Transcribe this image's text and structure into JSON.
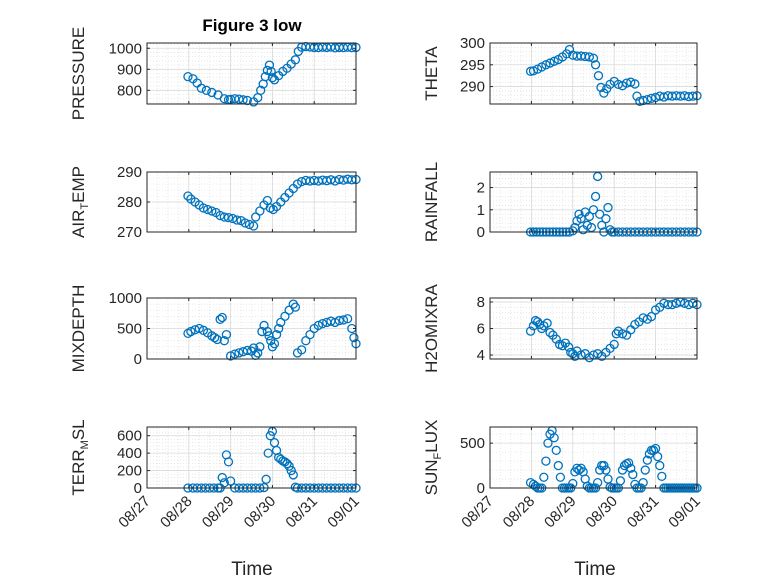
{
  "figure": {
    "title": "Figure 3 low",
    "xlabel": "Time"
  },
  "colors": {
    "marker": "#0072BD",
    "axis": "#262626",
    "grid": "#d9d9d9"
  },
  "chart_data": [
    {
      "type": "scatter",
      "label_parts": [
        "PRESSURE"
      ],
      "yticks": [
        800,
        900,
        1000
      ],
      "ylim": [
        735,
        1025
      ],
      "xlim": [
        0,
        5
      ],
      "xticks": [
        "08/27",
        "08/28",
        "08/29",
        "08/30",
        "08/31",
        "09/01"
      ],
      "xticklabels_shown": false,
      "grid": true,
      "x": [
        0.98,
        1.1,
        1.2,
        1.3,
        1.42,
        1.55,
        1.7,
        1.85,
        1.95,
        2.0,
        2.1,
        2.2,
        2.3,
        2.4,
        2.55,
        2.65,
        2.72,
        2.78,
        2.83,
        2.88,
        2.93,
        2.97,
        3.0,
        3.05,
        3.15,
        3.25,
        3.35,
        3.45,
        3.55,
        3.62,
        3.7,
        3.8,
        3.9,
        4.0,
        4.1,
        4.2,
        4.3,
        4.4,
        4.5,
        4.6,
        4.7,
        4.8,
        4.9,
        5.0
      ],
      "y": [
        865,
        855,
        835,
        810,
        800,
        790,
        778,
        760,
        755,
        757,
        760,
        758,
        755,
        752,
        745,
        765,
        800,
        830,
        865,
        895,
        920,
        890,
        860,
        850,
        870,
        890,
        905,
        925,
        945,
        985,
        1005,
        1008,
        1006,
        1004,
        1003,
        1005,
        1004,
        1006,
        1002,
        1004,
        1003,
        1005,
        1003,
        1004
      ]
    },
    {
      "type": "scatter",
      "label_parts": [
        "THETA"
      ],
      "yticks": [
        290,
        295,
        300
      ],
      "ylim": [
        286,
        300
      ],
      "xlim": [
        0,
        5
      ],
      "xticks": [
        "08/27",
        "08/28",
        "08/29",
        "08/30",
        "08/31",
        "09/01"
      ],
      "xticklabels_shown": false,
      "grid": true,
      "x": [
        0.98,
        1.05,
        1.15,
        1.25,
        1.35,
        1.45,
        1.55,
        1.65,
        1.75,
        1.85,
        1.92,
        2.0,
        2.1,
        2.2,
        2.3,
        2.4,
        2.5,
        2.55,
        2.62,
        2.68,
        2.75,
        2.82,
        2.9,
        3.0,
        3.1,
        3.2,
        3.3,
        3.4,
        3.5,
        3.55,
        3.62,
        3.7,
        3.8,
        3.9,
        4.0,
        4.1,
        4.2,
        4.3,
        4.4,
        4.5,
        4.6,
        4.7,
        4.8,
        4.9,
        5.0
      ],
      "y": [
        293.5,
        293.6,
        294,
        294.5,
        295,
        295.4,
        295.8,
        296.2,
        296.8,
        297.5,
        298.5,
        297.2,
        297,
        297,
        296.9,
        296.8,
        296.5,
        295,
        292.5,
        289.8,
        288.5,
        289.5,
        290.5,
        291.2,
        290.5,
        290.2,
        290.8,
        291,
        290.6,
        287.8,
        286.6,
        286.8,
        287.0,
        287.3,
        287.5,
        287.8,
        287.6,
        287.9,
        287.8,
        287.9,
        287.8,
        287.9,
        287.7,
        287.8,
        287.9
      ]
    },
    {
      "type": "scatter",
      "label_parts": [
        "AIR",
        "T",
        "EMP"
      ],
      "yticks": [
        270,
        280,
        290
      ],
      "ylim": [
        270,
        290
      ],
      "xlim": [
        0,
        5
      ],
      "xticks": [
        "08/27",
        "08/28",
        "08/29",
        "08/30",
        "08/31",
        "09/01"
      ],
      "xticklabels_shown": false,
      "grid": true,
      "x": [
        0.98,
        1.05,
        1.15,
        1.25,
        1.35,
        1.45,
        1.55,
        1.65,
        1.75,
        1.85,
        1.95,
        2.05,
        2.15,
        2.25,
        2.35,
        2.45,
        2.55,
        2.6,
        2.7,
        2.8,
        2.88,
        2.95,
        3.02,
        3.1,
        3.2,
        3.3,
        3.4,
        3.5,
        3.6,
        3.7,
        3.8,
        3.9,
        4.0,
        4.1,
        4.2,
        4.3,
        4.4,
        4.5,
        4.6,
        4.7,
        4.8,
        4.9,
        5.0
      ],
      "y": [
        282,
        281,
        280,
        279,
        278,
        277.5,
        277,
        276.5,
        275.5,
        275,
        274.8,
        274.5,
        274,
        273.8,
        273,
        272.5,
        272,
        275,
        277,
        279,
        280.5,
        278,
        277.5,
        278.5,
        280,
        281.5,
        283,
        284.5,
        286,
        286.8,
        287.2,
        287,
        287.2,
        287,
        287.3,
        287.1,
        287.4,
        287,
        287.5,
        287.3,
        287.6,
        287.4,
        287.5
      ]
    },
    {
      "type": "scatter",
      "label_parts": [
        "RAINFALL"
      ],
      "yticks": [
        0,
        1,
        2
      ],
      "ylim": [
        0,
        2.7
      ],
      "xlim": [
        0,
        5
      ],
      "xticks": [
        "08/27",
        "08/28",
        "08/29",
        "08/30",
        "08/31",
        "09/01"
      ],
      "xticklabels_shown": false,
      "grid": true,
      "x": [
        0.98,
        1.05,
        1.12,
        1.2,
        1.28,
        1.36,
        1.44,
        1.52,
        1.6,
        1.68,
        1.76,
        1.84,
        1.92,
        2.0,
        2.05,
        2.1,
        2.15,
        2.2,
        2.25,
        2.3,
        2.35,
        2.4,
        2.45,
        2.5,
        2.55,
        2.6,
        2.65,
        2.7,
        2.75,
        2.8,
        2.85,
        2.9,
        2.95,
        3.0,
        3.1,
        3.2,
        3.3,
        3.4,
        3.5,
        3.6,
        3.7,
        3.8,
        3.9,
        4.0,
        4.1,
        4.2,
        4.3,
        4.4,
        4.5,
        4.6,
        4.7,
        4.8,
        4.9,
        5.0
      ],
      "y": [
        0,
        0,
        0,
        0,
        0,
        0,
        0,
        0,
        0,
        0,
        0,
        0,
        0,
        0.05,
        0.2,
        0.5,
        0.8,
        0.6,
        0.1,
        0.9,
        0.3,
        0.7,
        0.2,
        1.0,
        1.6,
        2.5,
        0.8,
        0.3,
        0,
        0.6,
        1.1,
        0.1,
        0,
        0,
        0,
        0,
        0,
        0,
        0,
        0,
        0,
        0,
        0,
        0,
        0,
        0,
        0,
        0,
        0,
        0,
        0,
        0,
        0,
        0
      ]
    },
    {
      "type": "scatter",
      "label_parts": [
        "MIXDEPTH"
      ],
      "yticks": [
        0,
        500,
        1000
      ],
      "ylim": [
        0,
        1000
      ],
      "xlim": [
        0,
        5
      ],
      "xticks": [
        "08/27",
        "08/28",
        "08/29",
        "08/30",
        "08/31",
        "09/01"
      ],
      "xticklabels_shown": false,
      "grid": true,
      "x": [
        0.98,
        1.05,
        1.15,
        1.25,
        1.35,
        1.45,
        1.55,
        1.62,
        1.68,
        1.75,
        1.8,
        1.85,
        1.9,
        2.0,
        2.1,
        2.2,
        2.3,
        2.4,
        2.5,
        2.55,
        2.6,
        2.65,
        2.7,
        2.75,
        2.8,
        2.88,
        2.92,
        2.96,
        3.0,
        3.05,
        3.1,
        3.15,
        3.2,
        3.3,
        3.4,
        3.5,
        3.55,
        3.6,
        3.7,
        3.8,
        3.9,
        4.0,
        4.1,
        4.2,
        4.3,
        4.4,
        4.5,
        4.6,
        4.7,
        4.8,
        4.9,
        4.95,
        5.0
      ],
      "y": [
        420,
        450,
        480,
        500,
        470,
        430,
        380,
        350,
        320,
        650,
        680,
        300,
        400,
        50,
        80,
        100,
        120,
        140,
        130,
        180,
        60,
        100,
        200,
        450,
        550,
        450,
        380,
        300,
        200,
        250,
        400,
        500,
        600,
        700,
        800,
        900,
        850,
        100,
        150,
        300,
        400,
        500,
        550,
        580,
        600,
        620,
        600,
        630,
        640,
        660,
        500,
        350,
        250
      ]
    },
    {
      "type": "scatter",
      "label_parts": [
        "H2OMIXRA"
      ],
      "yticks": [
        4,
        6,
        8
      ],
      "ylim": [
        3.7,
        8.3
      ],
      "xlim": [
        0,
        5
      ],
      "xticks": [
        "08/27",
        "08/28",
        "08/29",
        "08/30",
        "08/31",
        "09/01"
      ],
      "xticklabels_shown": false,
      "grid": true,
      "x": [
        0.98,
        1.05,
        1.1,
        1.15,
        1.2,
        1.25,
        1.3,
        1.38,
        1.45,
        1.52,
        1.6,
        1.68,
        1.75,
        1.82,
        1.9,
        1.95,
        2.0,
        2.05,
        2.1,
        2.2,
        2.3,
        2.4,
        2.5,
        2.6,
        2.7,
        2.8,
        2.9,
        3.0,
        3.05,
        3.1,
        3.2,
        3.3,
        3.4,
        3.5,
        3.6,
        3.7,
        3.8,
        3.9,
        4.0,
        4.1,
        4.2,
        4.3,
        4.4,
        4.5,
        4.6,
        4.7,
        4.8,
        4.9,
        5.0
      ],
      "y": [
        5.8,
        6.2,
        6.6,
        6.5,
        6.3,
        6.0,
        6.2,
        6.4,
        5.7,
        5.5,
        5.2,
        4.8,
        4.7,
        4.9,
        4.6,
        4.2,
        4.1,
        3.9,
        4.3,
        4.0,
        4.1,
        3.8,
        4.0,
        4.1,
        3.9,
        4.2,
        4.5,
        4.8,
        5.6,
        5.8,
        5.6,
        5.5,
        5.9,
        6.3,
        6.5,
        6.8,
        6.7,
        6.9,
        7.4,
        7.6,
        7.9,
        7.8,
        7.8,
        7.9,
        8.0,
        7.9,
        7.8,
        7.9,
        7.8
      ]
    },
    {
      "type": "scatter",
      "label_parts": [
        "TERR",
        "M",
        "SL"
      ],
      "yticks": [
        0,
        200,
        400,
        600
      ],
      "ylim": [
        0,
        700
      ],
      "xlim": [
        0,
        5
      ],
      "xticks": [
        "08/27",
        "08/28",
        "08/29",
        "08/30",
        "08/31",
        "09/01"
      ],
      "xticklabels_shown": true,
      "grid": true,
      "x": [
        0.98,
        1.1,
        1.2,
        1.3,
        1.4,
        1.5,
        1.6,
        1.7,
        1.75,
        1.8,
        1.85,
        1.9,
        1.95,
        2.0,
        2.1,
        2.2,
        2.3,
        2.4,
        2.5,
        2.6,
        2.7,
        2.8,
        2.85,
        2.9,
        2.95,
        3.0,
        3.05,
        3.1,
        3.15,
        3.2,
        3.25,
        3.3,
        3.35,
        3.4,
        3.45,
        3.5,
        3.55,
        3.6,
        3.7,
        3.8,
        3.9,
        4.0,
        4.1,
        4.2,
        4.3,
        4.4,
        4.5,
        4.6,
        4.7,
        4.8,
        4.9,
        5.0
      ],
      "y": [
        0,
        0,
        0,
        0,
        0,
        0,
        0,
        0,
        0,
        120,
        60,
        380,
        300,
        80,
        0,
        0,
        0,
        0,
        0,
        0,
        0,
        5,
        100,
        400,
        600,
        650,
        520,
        430,
        350,
        330,
        310,
        300,
        280,
        250,
        200,
        150,
        10,
        0,
        0,
        0,
        0,
        0,
        0,
        0,
        0,
        0,
        0,
        0,
        0,
        0,
        0,
        0
      ]
    },
    {
      "type": "scatter",
      "label_parts": [
        "SUN",
        "F",
        "LUX"
      ],
      "yticks": [
        0,
        500
      ],
      "ylim": [
        0,
        680
      ],
      "xlim": [
        0,
        5
      ],
      "xticks": [
        "08/27",
        "08/28",
        "08/29",
        "08/30",
        "08/31",
        "09/01"
      ],
      "xticklabels_shown": true,
      "grid": true,
      "x": [
        0.98,
        1.05,
        1.1,
        1.15,
        1.2,
        1.25,
        1.3,
        1.35,
        1.4,
        1.45,
        1.5,
        1.55,
        1.6,
        1.65,
        1.7,
        1.75,
        1.8,
        1.85,
        1.9,
        1.95,
        2.0,
        2.05,
        2.1,
        2.15,
        2.2,
        2.25,
        2.3,
        2.35,
        2.4,
        2.45,
        2.5,
        2.55,
        2.6,
        2.65,
        2.7,
        2.75,
        2.8,
        2.85,
        2.9,
        2.95,
        3.0,
        3.05,
        3.1,
        3.15,
        3.2,
        3.25,
        3.3,
        3.35,
        3.4,
        3.45,
        3.5,
        3.55,
        3.6,
        3.65,
        3.7,
        3.75,
        3.8,
        3.85,
        3.9,
        3.95,
        4.0,
        4.05,
        4.1,
        4.15,
        4.2,
        4.25,
        4.3,
        4.35,
        4.4,
        4.45,
        4.5,
        4.55,
        4.6,
        4.65,
        4.7,
        4.75,
        4.8,
        4.85,
        4.9,
        4.95,
        5.0
      ],
      "y": [
        60,
        40,
        20,
        0,
        0,
        0,
        120,
        300,
        500,
        600,
        640,
        560,
        420,
        250,
        120,
        0,
        0,
        0,
        0,
        0,
        50,
        180,
        220,
        200,
        220,
        180,
        100,
        20,
        0,
        0,
        0,
        0,
        60,
        200,
        250,
        250,
        200,
        100,
        10,
        0,
        0,
        0,
        0,
        80,
        200,
        250,
        270,
        280,
        220,
        150,
        40,
        0,
        0,
        0,
        60,
        200,
        310,
        380,
        420,
        420,
        440,
        350,
        250,
        130,
        0,
        0,
        0,
        0,
        0,
        0,
        0,
        0,
        0,
        0,
        0,
        0,
        0,
        0,
        0,
        0,
        0
      ]
    }
  ]
}
